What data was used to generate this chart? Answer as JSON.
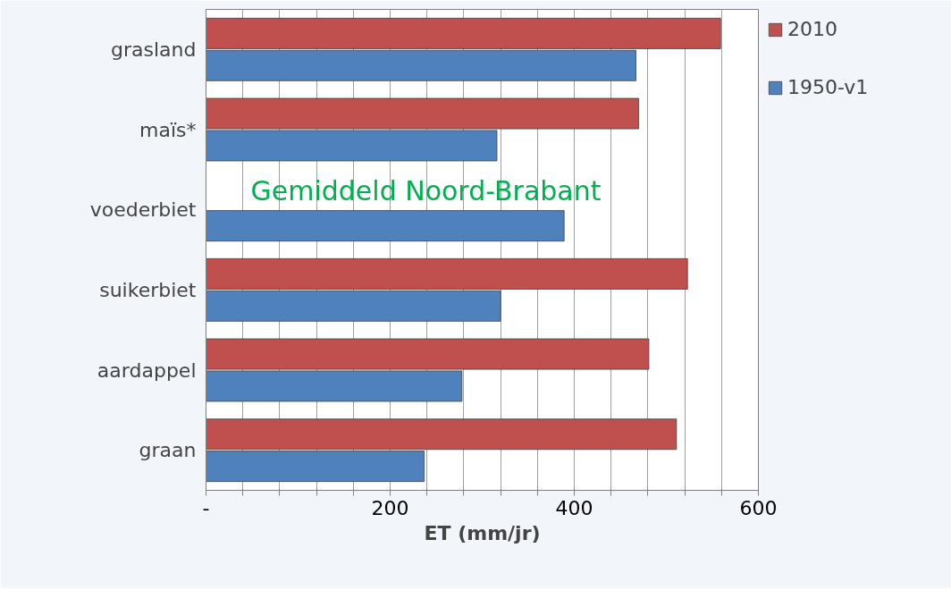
{
  "chart_data": {
    "type": "bar",
    "orientation": "horizontal",
    "xlabel": "ET (mm/jr)",
    "categories": [
      "grasland",
      "maïs*",
      "voederbiet",
      "suikerbiet",
      "aardappel",
      "graan"
    ],
    "series": [
      {
        "name": "2010",
        "color": "#c0504d",
        "values": [
          559,
          470,
          null,
          523,
          481,
          511
        ]
      },
      {
        "name": "1950-v1",
        "color": "#4f81bd",
        "values": [
          467,
          316,
          389,
          320,
          278,
          237
        ]
      }
    ],
    "xlim": [
      0,
      600
    ],
    "xticks": [
      {
        "value": 0,
        "label": "-"
      },
      {
        "value": 40,
        "label": null
      },
      {
        "value": 80,
        "label": null
      },
      {
        "value": 120,
        "label": null
      },
      {
        "value": 160,
        "label": null
      },
      200,
      {
        "value": 240,
        "label": null
      },
      {
        "value": 280,
        "label": null
      },
      {
        "value": 320,
        "label": null
      },
      {
        "value": 360,
        "label": null
      },
      400,
      {
        "value": 440,
        "label": null
      },
      {
        "value": 480,
        "label": null
      },
      {
        "value": 520,
        "label": null
      },
      {
        "value": 560,
        "label": null
      },
      600
    ],
    "grid": "x",
    "legend": "right",
    "annotations": [
      "Gemiddeld Noord-Brabant"
    ]
  }
}
